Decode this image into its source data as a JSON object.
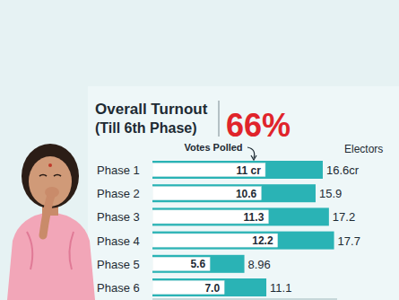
{
  "chart_data": {
    "type": "bar",
    "orientation": "horizontal",
    "title": "Overall Turnout",
    "subtitle": "(Till 6th Phase)",
    "annotations": [
      "66%"
    ],
    "categories": [
      "Phase 1",
      "Phase 2",
      "Phase 3",
      "Phase 4",
      "Phase 5",
      "Phase 6"
    ],
    "series": [
      {
        "name": "Votes Polled",
        "color": "#ffffff",
        "values": [
          11,
          10.6,
          11.3,
          12.2,
          5.6,
          7.0
        ],
        "value_labels": [
          "11 cr",
          "10.6",
          "11.3",
          "12.2",
          "5.6",
          "7.0"
        ]
      },
      {
        "name": "Electors",
        "color": "#2ab3b5",
        "values": [
          16.6,
          15.9,
          17.2,
          17.7,
          8.96,
          11.1
        ],
        "value_labels": [
          "16.6cr",
          "15.9",
          "17.2",
          "17.7",
          "8.96",
          "11.1"
        ]
      }
    ],
    "xlim": [
      0,
      18
    ],
    "xticks": [],
    "data_labels": true,
    "tick_labels": false,
    "grid": false
  }
}
